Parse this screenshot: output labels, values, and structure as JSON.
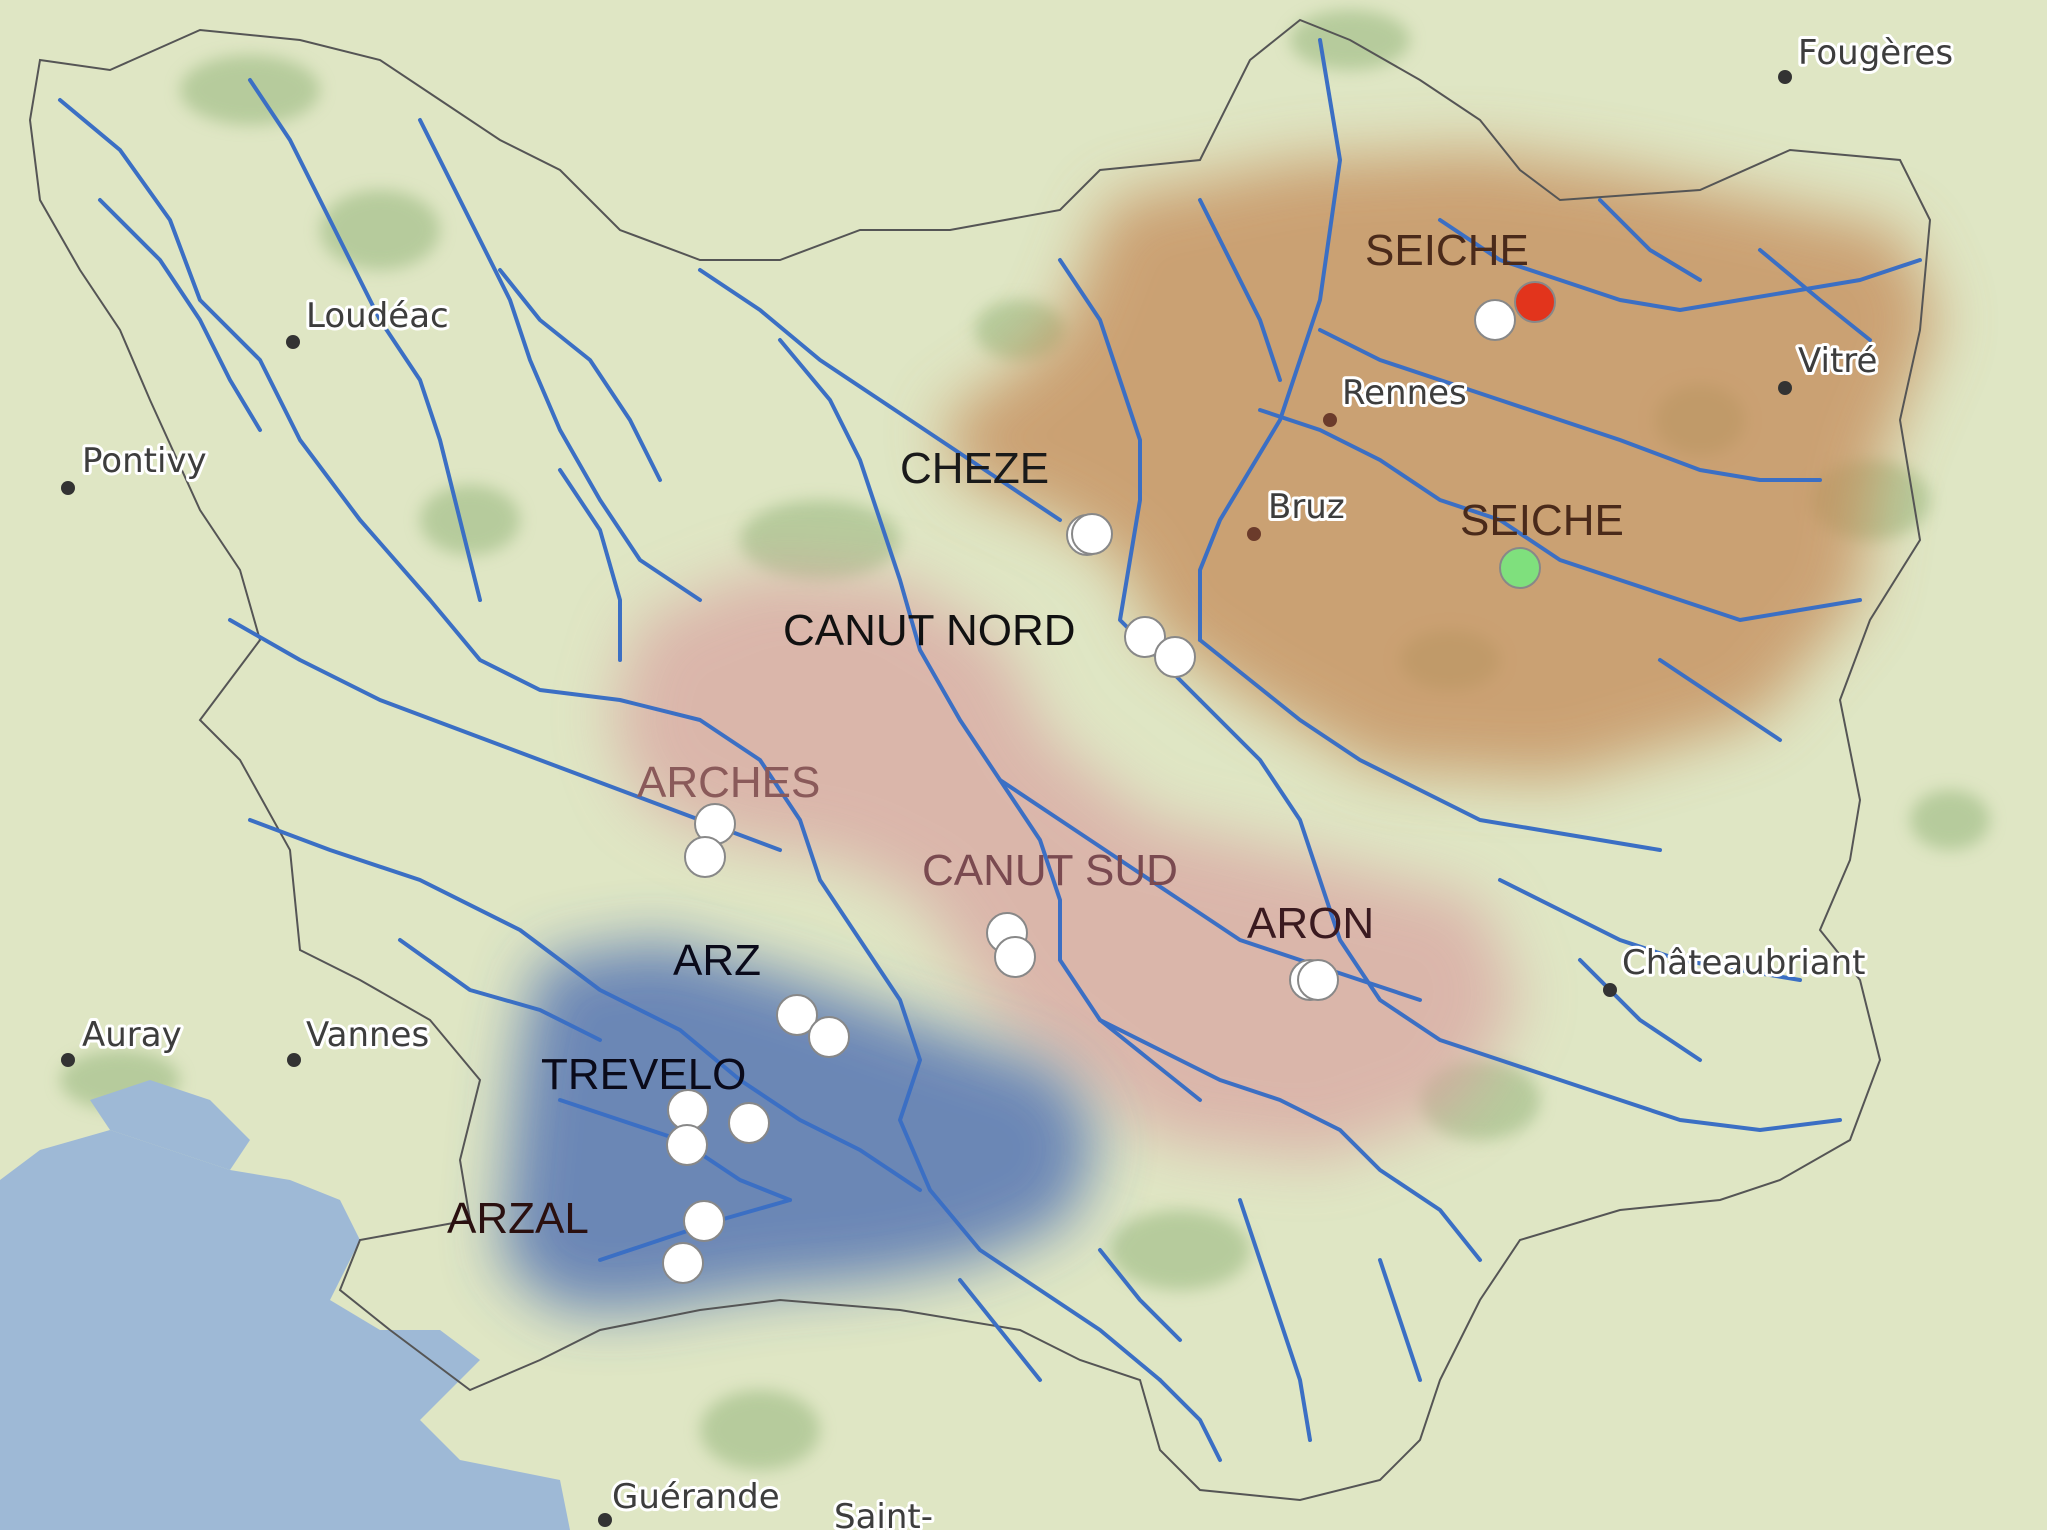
{
  "colors": {
    "land": "#dfe6c4",
    "sea": "#9eb9d6",
    "river": "#3b6fc4",
    "basin_brown": "#c48a58",
    "basin_pink": "#d9a2a0",
    "basin_blue": "#3a5fb0",
    "station_white": "#ffffff",
    "station_red": "#e2341c",
    "station_green": "#7fe07d"
  },
  "cities": [
    {
      "name": "Fougères"
    },
    {
      "name": "Loudéac"
    },
    {
      "name": "Pontivy"
    },
    {
      "name": "Rennes"
    },
    {
      "name": "Bruz"
    },
    {
      "name": "Vitré"
    },
    {
      "name": "Châteaubriant"
    },
    {
      "name": "Auray"
    },
    {
      "name": "Vannes"
    },
    {
      "name": "Guérande"
    },
    {
      "name": "Saint-"
    }
  ],
  "basins": [
    {
      "name": "SEICHE",
      "color": "#4a2a1a"
    },
    {
      "name": "CHEZE",
      "color": "#1a1a1a"
    },
    {
      "name": "SEICHE",
      "color": "#4a2a1a"
    },
    {
      "name": "CANUT NORD",
      "color": "#111111"
    },
    {
      "name": "ARCHES",
      "color": "#8a5a5a"
    },
    {
      "name": "CANUT SUD",
      "color": "#7a4a50"
    },
    {
      "name": "ARON",
      "color": "#3a1a20"
    },
    {
      "name": "ARZ",
      "color": "#0a0a1a"
    },
    {
      "name": "TREVELO",
      "color": "#0a0a1a"
    },
    {
      "name": "ARZAL",
      "color": "#2a1010"
    }
  ],
  "stations": [
    {
      "type": "white"
    },
    {
      "type": "red"
    },
    {
      "type": "green"
    },
    {
      "type": "white"
    },
    {
      "type": "white"
    },
    {
      "type": "white"
    },
    {
      "type": "white"
    },
    {
      "type": "white"
    },
    {
      "type": "white"
    },
    {
      "type": "white"
    },
    {
      "type": "white"
    },
    {
      "type": "white"
    },
    {
      "type": "white"
    },
    {
      "type": "white"
    },
    {
      "type": "white"
    },
    {
      "type": "white"
    },
    {
      "type": "white"
    },
    {
      "type": "white"
    },
    {
      "type": "white"
    },
    {
      "type": "white"
    }
  ]
}
